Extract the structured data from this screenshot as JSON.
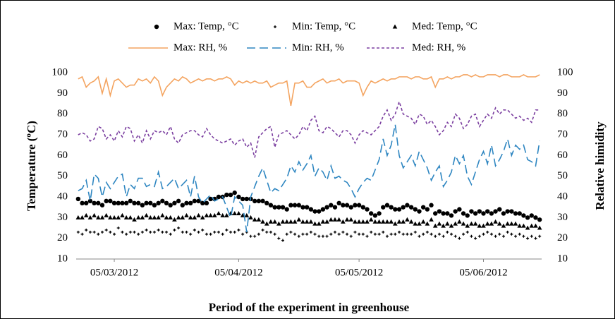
{
  "chart_data": {
    "type": "line",
    "xlabel": "Period of the experiment in greenhouse",
    "ylabel": "Temperature (ºC)",
    "y2label": "Relative himidity",
    "ylim": [
      10,
      100
    ],
    "yticks": [
      10,
      20,
      30,
      40,
      50,
      60,
      70,
      80,
      90,
      100
    ],
    "y2lim": [
      10,
      100
    ],
    "y2ticks": [
      10,
      20,
      30,
      40,
      50,
      60,
      70,
      80,
      90,
      100
    ],
    "grid": false,
    "categories": [
      null,
      null,
      null,
      null,
      null,
      null,
      null,
      null,
      null,
      "05/03/2012",
      null,
      null,
      null,
      null,
      null,
      null,
      null,
      null,
      null,
      null,
      null,
      null,
      null,
      null,
      null,
      null,
      null,
      null,
      null,
      null,
      null,
      null,
      null,
      null,
      null,
      null,
      null,
      null,
      null,
      null,
      "05/04/2012",
      null,
      null,
      null,
      null,
      null,
      null,
      null,
      null,
      null,
      null,
      null,
      null,
      null,
      null,
      null,
      null,
      null,
      null,
      null,
      null,
      null,
      null,
      null,
      null,
      null,
      null,
      null,
      null,
      null,
      "05/05/2012",
      null,
      null,
      null,
      null,
      null,
      null,
      null,
      null,
      null,
      null,
      null,
      null,
      null,
      null,
      null,
      null,
      null,
      null,
      null,
      null,
      null,
      null,
      null,
      null,
      null,
      null,
      null,
      null,
      null,
      null,
      "05/06/2012",
      null,
      null,
      null,
      null,
      null,
      null,
      null,
      null,
      null,
      null,
      null,
      null,
      null,
      null
    ],
    "series": [
      {
        "name": "Max: Temp, °C",
        "color": "#000000",
        "marker": "circle",
        "values": [
          39,
          37,
          37,
          38,
          37,
          37,
          36,
          38,
          38,
          37,
          37,
          37,
          37,
          38,
          37,
          37,
          36,
          37,
          37,
          36,
          37,
          38,
          37,
          36,
          37,
          38,
          36,
          37,
          37,
          38,
          38,
          37,
          37,
          39,
          39,
          40,
          40,
          41,
          41,
          42,
          40,
          39,
          39,
          39,
          38,
          38,
          38,
          37,
          36,
          35,
          35,
          35,
          34,
          36,
          36,
          36,
          35,
          35,
          34,
          33,
          33,
          34,
          35,
          36,
          35,
          37,
          36,
          36,
          35,
          36,
          36,
          35,
          34,
          32,
          31,
          32,
          35,
          36,
          35,
          34,
          34,
          35,
          36,
          35,
          34,
          33,
          35,
          34,
          36,
          32,
          33,
          32,
          32,
          31,
          33,
          34,
          32,
          31,
          33,
          32,
          33,
          32,
          33,
          32,
          33,
          34,
          32,
          33,
          33,
          32,
          32,
          31,
          30,
          31,
          30,
          29
        ]
      },
      {
        "name": "Min: Temp, °C",
        "color": "#000000",
        "marker": "plus",
        "values": [
          23,
          22,
          24,
          23,
          23,
          22,
          23,
          24,
          23,
          22,
          25,
          23,
          22,
          23,
          23,
          22,
          23,
          24,
          23,
          23,
          24,
          23,
          23,
          22,
          24,
          25,
          23,
          23,
          22,
          24,
          23,
          24,
          22,
          22,
          23,
          23,
          22,
          24,
          23,
          23,
          24,
          22,
          23,
          21,
          21,
          22,
          24,
          23,
          23,
          22,
          20,
          19,
          22,
          23,
          22,
          21,
          22,
          22,
          23,
          22,
          21,
          21,
          21,
          22,
          23,
          22,
          23,
          22,
          21,
          23,
          22,
          22,
          21,
          23,
          22,
          22,
          23,
          21,
          22,
          22,
          23,
          22,
          22,
          22,
          23,
          21,
          22,
          23,
          22,
          21,
          22,
          21,
          23,
          22,
          21,
          20,
          22,
          23,
          21,
          20,
          21,
          22,
          23,
          22,
          21,
          22,
          21,
          23,
          22,
          21,
          22,
          21,
          20,
          21,
          20,
          21
        ]
      },
      {
        "name": "Med: Temp, °C",
        "color": "#000000",
        "marker": "triangle",
        "values": [
          30,
          30,
          31,
          30,
          31,
          30,
          30,
          31,
          30,
          30,
          30,
          31,
          30,
          30,
          29,
          30,
          30,
          31,
          30,
          30,
          30,
          31,
          30,
          30,
          29,
          30,
          30,
          31,
          30,
          30,
          31,
          30,
          31,
          31,
          31,
          32,
          31,
          31,
          32,
          32,
          32,
          31,
          31,
          30,
          29,
          29,
          28,
          27,
          28,
          28,
          27,
          28,
          28,
          28,
          28,
          29,
          28,
          28,
          28,
          27,
          27,
          28,
          28,
          29,
          29,
          29,
          28,
          29,
          29,
          28,
          28,
          28,
          28,
          29,
          28,
          28,
          28,
          28,
          28,
          27,
          28,
          28,
          29,
          28,
          27,
          27,
          28,
          27,
          29,
          26,
          27,
          26,
          27,
          26,
          27,
          28,
          27,
          26,
          27,
          27,
          26,
          26,
          27,
          27,
          28,
          27,
          26,
          27,
          27,
          27,
          26,
          26,
          25,
          26,
          26,
          25
        ]
      },
      {
        "name": "Max: RH, %",
        "color": "#f4a460",
        "axis": "y2",
        "line_style": "solid",
        "values": [
          97,
          98,
          93,
          95,
          96,
          98,
          90,
          97,
          89,
          96,
          97,
          95,
          93,
          94,
          94,
          97,
          96,
          97,
          95,
          98,
          96,
          89,
          93,
          95,
          97,
          96,
          98,
          97,
          95,
          96,
          97,
          96,
          97,
          97,
          96,
          97,
          97,
          98,
          97,
          94,
          96,
          95,
          96,
          95,
          96,
          95,
          95,
          96,
          93,
          94,
          95,
          95,
          96,
          84,
          95,
          95,
          96,
          93,
          93,
          95,
          96,
          97,
          95,
          96,
          96,
          97,
          95,
          96,
          96,
          96,
          95,
          89,
          93,
          96,
          95,
          96,
          97,
          96,
          97,
          97,
          98,
          98,
          98,
          97,
          98,
          98,
          97,
          97,
          98,
          93,
          97,
          97,
          98,
          97,
          98,
          98,
          99,
          99,
          98,
          99,
          98,
          98,
          99,
          99,
          99,
          98,
          99,
          99,
          98,
          98,
          98,
          99,
          98,
          98,
          98,
          99
        ]
      },
      {
        "name": "Min: RH, %",
        "color": "#2e86c1",
        "axis": "y2",
        "line_style": "dashed",
        "values": [
          43,
          44,
          48,
          38,
          51,
          49,
          40,
          47,
          44,
          47,
          50,
          51,
          40,
          46,
          44,
          49,
          49,
          45,
          46,
          45,
          52,
          44,
          45,
          47,
          49,
          44,
          46,
          48,
          40,
          50,
          40,
          37,
          39,
          41,
          38,
          39,
          40,
          35,
          30,
          40,
          38,
          36,
          23,
          40,
          45,
          50,
          54,
          48,
          42,
          44,
          43,
          46,
          49,
          55,
          52,
          57,
          53,
          56,
          60,
          50,
          54,
          52,
          48,
          55,
          49,
          50,
          48,
          47,
          44,
          40,
          44,
          47,
          49,
          48,
          53,
          58,
          68,
          60,
          65,
          75,
          60,
          54,
          57,
          60,
          55,
          62,
          58,
          54,
          48,
          52,
          55,
          45,
          48,
          52,
          60,
          56,
          60,
          50,
          46,
          52,
          58,
          62,
          56,
          65,
          55,
          58,
          62,
          68,
          60,
          65,
          63,
          65,
          58,
          57,
          55,
          67
        ]
      },
      {
        "name": "Med: RH, %",
        "color": "#7b3fa0",
        "axis": "y2",
        "line_style": "dotted",
        "values": [
          70,
          71,
          70,
          67,
          68,
          74,
          73,
          68,
          70,
          67,
          72,
          69,
          74,
          73,
          67,
          70,
          66,
          72,
          68,
          72,
          71,
          72,
          70,
          74,
          68,
          66,
          70,
          71,
          72,
          72,
          70,
          69,
          73,
          70,
          68,
          67,
          66,
          67,
          68,
          65,
          67,
          68,
          64,
          66,
          59,
          69,
          71,
          73,
          74,
          64,
          70,
          71,
          72,
          70,
          68,
          70,
          74,
          72,
          77,
          79,
          72,
          71,
          74,
          73,
          71,
          69,
          72,
          72,
          70,
          66,
          70,
          72,
          71,
          70,
          72,
          74,
          79,
          82,
          77,
          80,
          86,
          80,
          79,
          78,
          75,
          80,
          79,
          75,
          77,
          74,
          70,
          72,
          76,
          74,
          80,
          78,
          73,
          75,
          79,
          80,
          74,
          77,
          80,
          78,
          83,
          80,
          82,
          82,
          80,
          78,
          79,
          77,
          78,
          76,
          82,
          82
        ]
      }
    ]
  }
}
